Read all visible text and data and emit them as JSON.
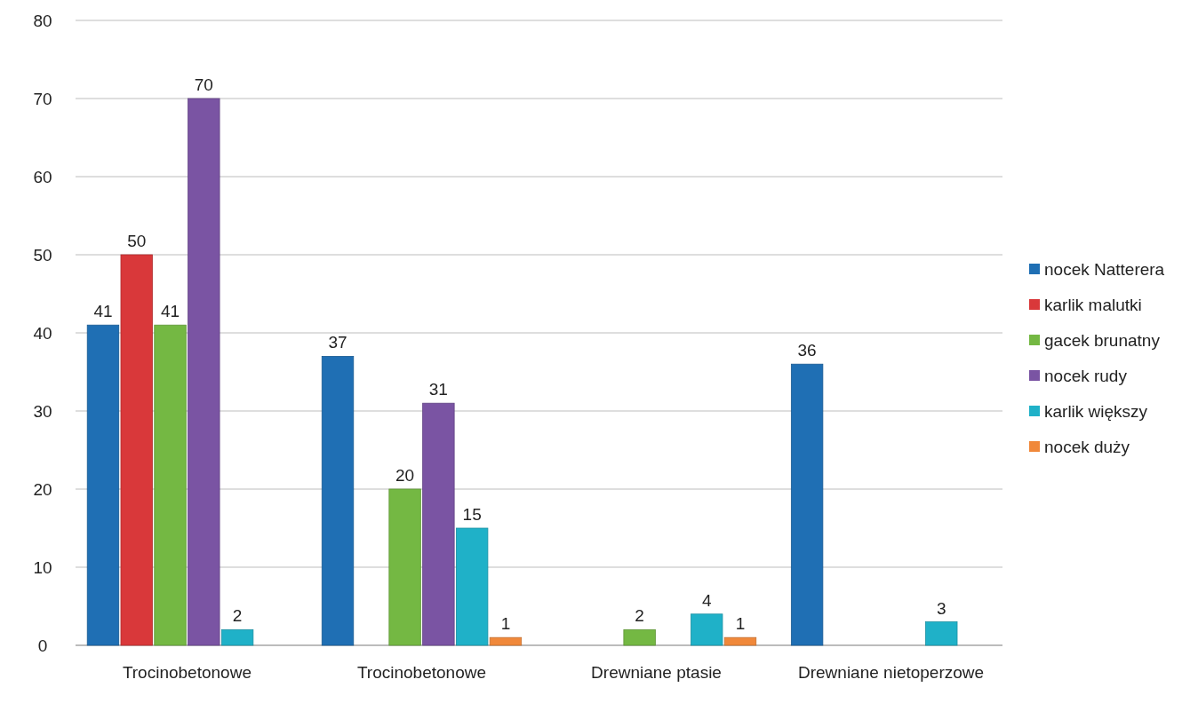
{
  "chart_data": {
    "type": "bar",
    "categories": [
      "Trocinobetonowe",
      "Trocinobetonowe",
      "Drewniane ptasie",
      "Drewniane nietoperzowe"
    ],
    "series": [
      {
        "name": "nocek Natterera",
        "color": "#1f6fb4",
        "values": [
          41,
          37,
          null,
          36
        ]
      },
      {
        "name": "karlik malutki",
        "color": "#d9383a",
        "values": [
          50,
          null,
          null,
          null
        ]
      },
      {
        "name": "gacek brunatny",
        "color": "#74b843",
        "values": [
          41,
          20,
          2,
          null
        ]
      },
      {
        "name": "nocek rudy",
        "color": "#7a54a3",
        "values": [
          70,
          31,
          null,
          null
        ]
      },
      {
        "name": "karlik większy",
        "color": "#1fb1c8",
        "values": [
          2,
          15,
          4,
          3
        ]
      },
      {
        "name": "nocek duży",
        "color": "#f0883a",
        "values": [
          null,
          1,
          1,
          null
        ]
      }
    ],
    "ylim": [
      0,
      80
    ],
    "yticks": [
      0,
      10,
      20,
      30,
      40,
      50,
      60,
      70,
      80
    ],
    "grid": "y",
    "legend": "right",
    "data_labels": true
  }
}
